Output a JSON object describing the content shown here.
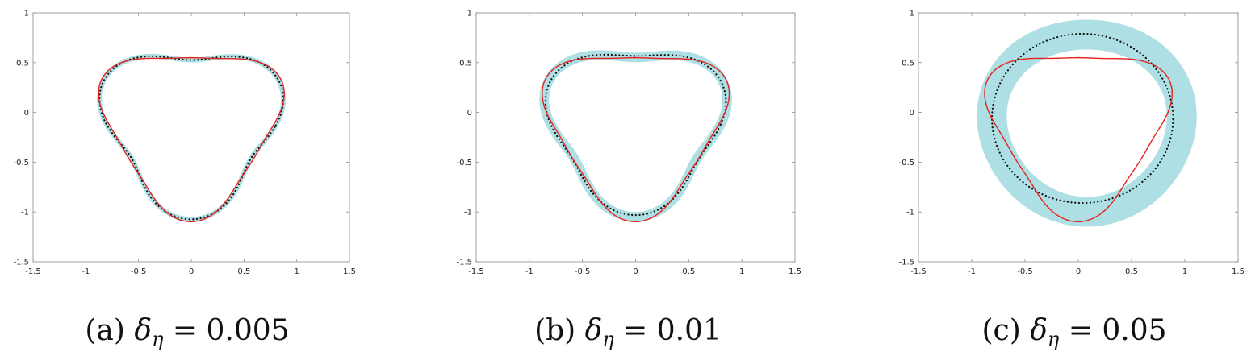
{
  "chart_data": [
    {
      "type": "line",
      "caption": {
        "label": "(a)",
        "symbol": "δ",
        "subscript": "η",
        "equals": "=",
        "value": "0.005"
      },
      "xlim": [
        -1.5,
        1.5
      ],
      "ylim": [
        -1.5,
        1
      ],
      "x_tick_labels": [
        "-1.5",
        "-1",
        "-0.5",
        "0",
        "0.5",
        "1",
        "1.5"
      ],
      "y_tick_labels": [
        "1",
        "0.5",
        "0",
        "-0.5",
        "-1",
        "-1.5"
      ],
      "series": [
        {
          "role": "band",
          "color": "#a9dde3",
          "band_width": 0.03,
          "shape": {
            "radius": 0.8,
            "a3": 0.18,
            "phase": 0.52,
            "cx": 0,
            "cy": -0.13
          }
        },
        {
          "role": "reconstruction",
          "style": "dotted",
          "color": "#111111",
          "shape": {
            "radius": 0.8,
            "a3": 0.18,
            "phase": 0.52,
            "cx": 0,
            "cy": -0.13
          }
        },
        {
          "role": "exact",
          "style": "solid",
          "color": "#e8211d",
          "shape": {
            "radius": 0.8,
            "a3": 0.18,
            "a6": 0.03,
            "phase": 0.52,
            "cx": 0,
            "cy": -0.13
          }
        }
      ]
    },
    {
      "type": "line",
      "caption": {
        "label": "(b)",
        "symbol": "δ",
        "subscript": "η",
        "equals": "=",
        "value": "0.01"
      },
      "xlim": [
        -1.5,
        1.5
      ],
      "ylim": [
        -1.5,
        1
      ],
      "x_tick_labels": [
        "-1.5",
        "-1",
        "-0.5",
        "0",
        "0.5",
        "1",
        "1.5"
      ],
      "y_tick_labels": [
        "1",
        "0.5",
        "0",
        "-0.5",
        "-1",
        "-1.5"
      ],
      "series": [
        {
          "role": "band",
          "color": "#a9dde3",
          "band_width": 0.09,
          "shape": {
            "radius": 0.8,
            "a3": 0.16,
            "phase": 0.52,
            "cx": 0,
            "cy": -0.12
          }
        },
        {
          "role": "reconstruction",
          "style": "dotted",
          "color": "#111111",
          "shape": {
            "radius": 0.8,
            "a3": 0.14,
            "phase": 0.52,
            "cx": 0,
            "cy": -0.12
          }
        },
        {
          "role": "exact",
          "style": "solid",
          "color": "#e8211d",
          "shape": {
            "radius": 0.8,
            "a3": 0.18,
            "a6": 0.03,
            "phase": 0.52,
            "cx": 0,
            "cy": -0.13
          }
        }
      ]
    },
    {
      "type": "line",
      "caption": {
        "label": "(c)",
        "symbol": "δ",
        "subscript": "η",
        "equals": "=",
        "value": "0.05"
      },
      "xlim": [
        -1.5,
        1.5
      ],
      "ylim": [
        -1.5,
        1
      ],
      "x_tick_labels": [
        "-1.5",
        "-1",
        "-0.5",
        "0",
        "0.5",
        "1",
        "1.5"
      ],
      "y_tick_labels": [
        "1",
        "0.5",
        "0",
        "-0.5",
        "-1",
        "-1.5"
      ],
      "series": [
        {
          "role": "band",
          "color": "#a9dde3",
          "band_width": 0.28,
          "shape": {
            "radius": 0.89,
            "a3": 0.02,
            "phase": 0.52,
            "cx": 0.08,
            "cy": -0.09
          }
        },
        {
          "role": "reconstruction",
          "style": "dotted",
          "color": "#111111",
          "shape": {
            "radius": 0.85,
            "a3": 0.0,
            "phase": 0.52,
            "cx": 0.04,
            "cy": -0.06
          }
        },
        {
          "role": "exact",
          "style": "solid",
          "color": "#e8211d",
          "shape": {
            "radius": 0.8,
            "a3": 0.18,
            "a6": 0.03,
            "phase": 0.52,
            "cx": 0,
            "cy": -0.13
          }
        }
      ]
    }
  ]
}
